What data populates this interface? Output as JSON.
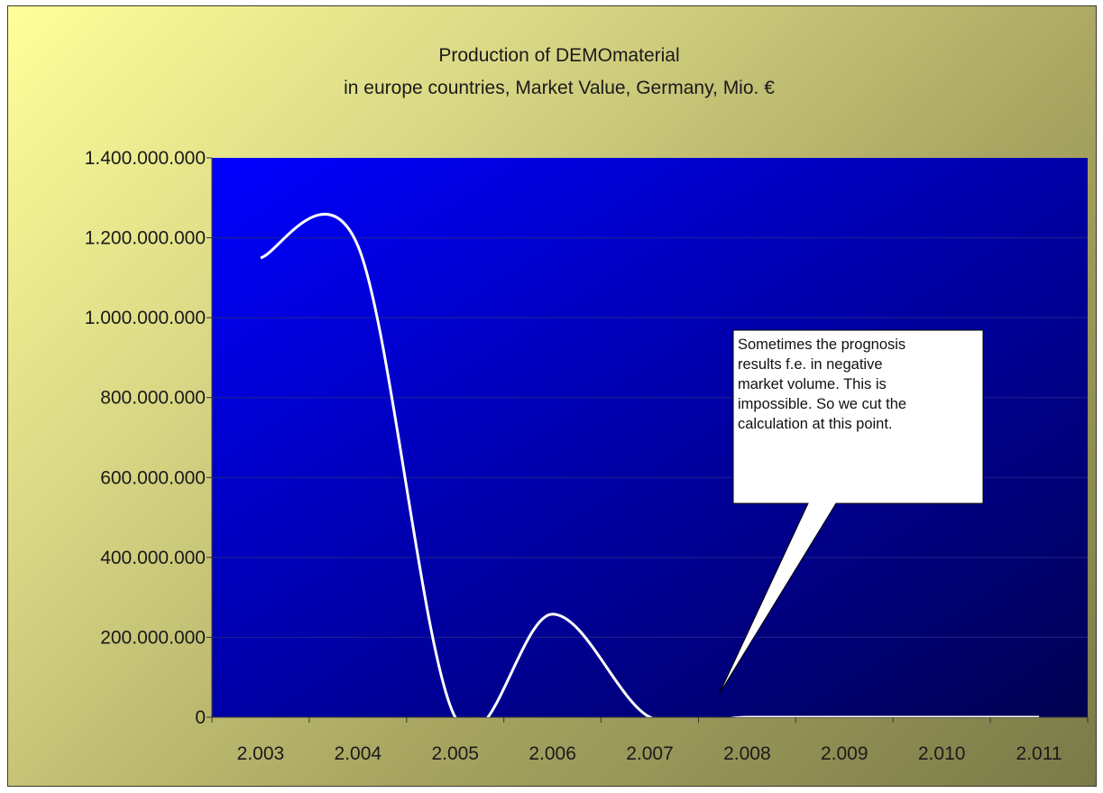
{
  "chart_data": {
    "type": "line",
    "title": "Production of DEMOmaterial",
    "subtitle": "in europe countries, Market Value, Germany, Mio. €",
    "xlabel": "",
    "ylabel": "",
    "categories": [
      "2.003",
      "2.004",
      "2.005",
      "2.006",
      "2.007",
      "2.008",
      "2.009",
      "2.010",
      "2.011"
    ],
    "ylim": [
      0,
      1400000000
    ],
    "yticks": [
      0,
      200000000,
      400000000,
      600000000,
      800000000,
      1000000000,
      1200000000,
      1400000000
    ],
    "ytick_labels": [
      "0",
      "200.000.000",
      "400.000.000",
      "600.000.000",
      "800.000.000",
      "1.000.000.000",
      "1.200.000.000",
      "1.400.000.000"
    ],
    "grid": true,
    "smooth": true,
    "series": [
      {
        "values": [
          1150000000,
          1180000000,
          0,
          258000000,
          0,
          0,
          0,
          0,
          0
        ],
        "color": "#ffffff"
      }
    ],
    "annotations": [
      {
        "lines": [
          "Sometimes the prognosis",
          "results f.e. in negative",
          "market volume. This is",
          "impossible. So we cut the",
          "calculation at this point."
        ],
        "points_to_category": "2.008"
      }
    ],
    "colors": {
      "plot_gradient_start": "#0000ff",
      "plot_gradient_end": "#000050",
      "frame_gradient_start": "#ffff9a",
      "frame_gradient_end": "#7a7a48",
      "line": "#ffffff"
    }
  }
}
